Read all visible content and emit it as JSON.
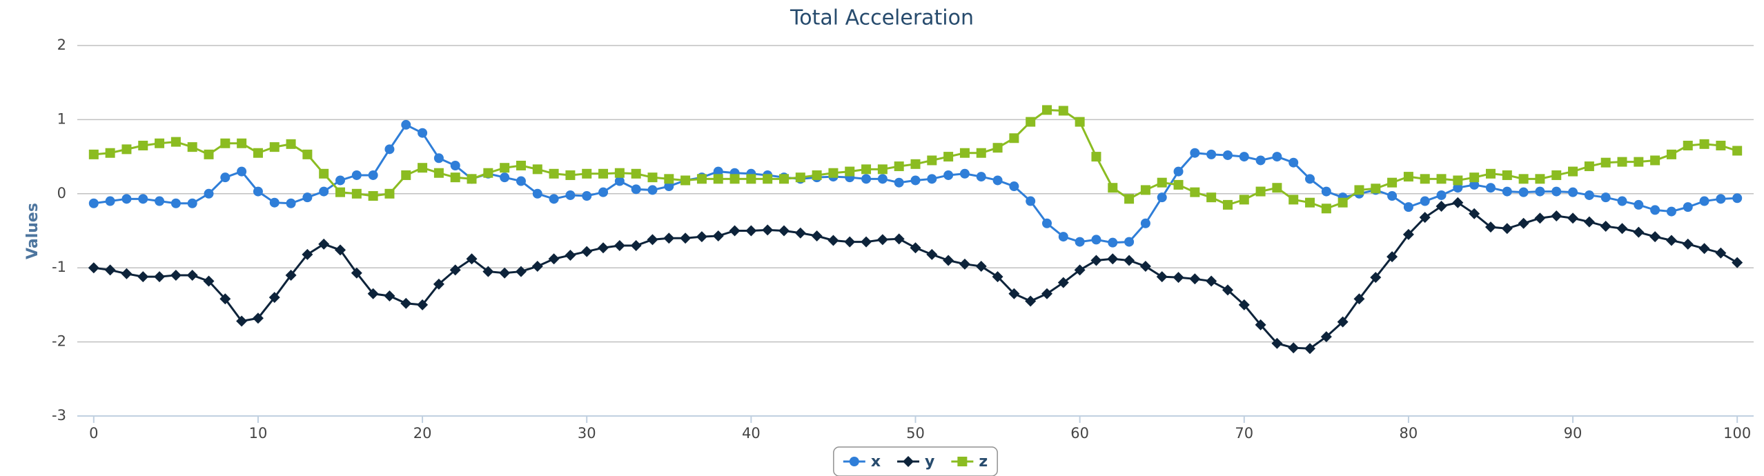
{
  "chart_data": {
    "type": "line",
    "title": "Total Acceleration",
    "y_label": "Values",
    "x": [
      0,
      1,
      2,
      3,
      4,
      5,
      6,
      7,
      8,
      9,
      10,
      11,
      12,
      13,
      14,
      15,
      16,
      17,
      18,
      19,
      20,
      21,
      22,
      23,
      24,
      25,
      26,
      27,
      28,
      29,
      30,
      31,
      32,
      33,
      34,
      35,
      36,
      37,
      38,
      39,
      40,
      41,
      42,
      43,
      44,
      45,
      46,
      47,
      48,
      49,
      50,
      51,
      52,
      53,
      54,
      55,
      56,
      57,
      58,
      59,
      60,
      61,
      62,
      63,
      64,
      65,
      66,
      67,
      68,
      69,
      70,
      71,
      72,
      73,
      74,
      75,
      76,
      77,
      78,
      79,
      80,
      81,
      82,
      83,
      84,
      85,
      86,
      87,
      88,
      89,
      90,
      91,
      92,
      93,
      94,
      95,
      96,
      97,
      98,
      99,
      100
    ],
    "series": [
      {
        "name": "x",
        "color": "#2f7ed8",
        "marker": "circle",
        "values": [
          -0.13,
          -0.1,
          -0.07,
          -0.07,
          -0.1,
          -0.13,
          -0.13,
          0,
          0.22,
          0.3,
          0.03,
          -0.12,
          -0.13,
          -0.05,
          0.03,
          0.18,
          0.25,
          0.25,
          0.6,
          0.93,
          0.82,
          0.48,
          0.38,
          0.2,
          0.27,
          0.22,
          0.17,
          0,
          -0.07,
          -0.02,
          -0.03,
          0.02,
          0.17,
          0.06,
          0.05,
          0.1,
          0.18,
          0.22,
          0.3,
          0.28,
          0.27,
          0.25,
          0.22,
          0.2,
          0.22,
          0.23,
          0.22,
          0.2,
          0.2,
          0.15,
          0.18,
          0.2,
          0.25,
          0.27,
          0.23,
          0.18,
          0.1,
          -0.1,
          -0.4,
          -0.58,
          -0.65,
          -0.62,
          -0.66,
          -0.65,
          -0.4,
          -0.05,
          0.3,
          0.55,
          0.53,
          0.52,
          0.5,
          0.45,
          0.5,
          0.42,
          0.2,
          0.03,
          -0.05,
          0,
          0.05,
          -0.03,
          -0.18,
          -0.1,
          -0.02,
          0.08,
          0.12,
          0.08,
          0.03,
          0.02,
          0.03,
          0.03,
          0.02,
          -0.02,
          -0.05,
          -0.1,
          -0.15,
          -0.22,
          -0.24,
          -0.18,
          -0.1,
          -0.07,
          -0.06
        ]
      },
      {
        "name": "y",
        "color": "#0d233a",
        "marker": "diamond",
        "values": [
          -1.0,
          -1.03,
          -1.08,
          -1.12,
          -1.12,
          -1.1,
          -1.1,
          -1.18,
          -1.42,
          -1.72,
          -1.68,
          -1.4,
          -1.1,
          -0.82,
          -0.68,
          -0.76,
          -1.07,
          -1.35,
          -1.38,
          -1.48,
          -1.5,
          -1.22,
          -1.03,
          -0.88,
          -1.05,
          -1.07,
          -1.05,
          -0.98,
          -0.88,
          -0.83,
          -0.78,
          -0.73,
          -0.7,
          -0.7,
          -0.62,
          -0.6,
          -0.6,
          -0.58,
          -0.57,
          -0.5,
          -0.5,
          -0.49,
          -0.5,
          -0.53,
          -0.57,
          -0.63,
          -0.65,
          -0.65,
          -0.62,
          -0.61,
          -0.73,
          -0.82,
          -0.9,
          -0.95,
          -0.98,
          -1.12,
          -1.35,
          -1.45,
          -1.35,
          -1.2,
          -1.03,
          -0.9,
          -0.88,
          -0.9,
          -0.98,
          -1.12,
          -1.13,
          -1.15,
          -1.18,
          -1.3,
          -1.5,
          -1.77,
          -2.02,
          -2.08,
          -2.09,
          -1.93,
          -1.73,
          -1.42,
          -1.13,
          -0.85,
          -0.55,
          -0.32,
          -0.17,
          -0.12,
          -0.27,
          -0.45,
          -0.47,
          -0.4,
          -0.33,
          -0.3,
          -0.33,
          -0.38,
          -0.44,
          -0.47,
          -0.52,
          -0.58,
          -0.63,
          -0.68,
          -0.74,
          -0.8,
          -0.93
        ]
      },
      {
        "name": "z",
        "color": "#8bbc21",
        "marker": "square",
        "values": [
          0.53,
          0.55,
          0.6,
          0.65,
          0.68,
          0.7,
          0.63,
          0.53,
          0.68,
          0.68,
          0.55,
          0.63,
          0.67,
          0.53,
          0.27,
          0.02,
          0,
          -0.03,
          0,
          0.25,
          0.35,
          0.28,
          0.22,
          0.2,
          0.28,
          0.35,
          0.38,
          0.33,
          0.27,
          0.25,
          0.27,
          0.27,
          0.28,
          0.27,
          0.22,
          0.2,
          0.18,
          0.2,
          0.2,
          0.2,
          0.2,
          0.2,
          0.2,
          0.22,
          0.25,
          0.28,
          0.3,
          0.33,
          0.33,
          0.37,
          0.4,
          0.45,
          0.5,
          0.55,
          0.55,
          0.62,
          0.75,
          0.97,
          1.13,
          1.12,
          0.97,
          0.5,
          0.08,
          -0.07,
          0.05,
          0.15,
          0.12,
          0.02,
          -0.05,
          -0.15,
          -0.08,
          0.03,
          0.08,
          -0.08,
          -0.12,
          -0.2,
          -0.12,
          0.05,
          0.07,
          0.15,
          0.23,
          0.2,
          0.2,
          0.18,
          0.22,
          0.27,
          0.25,
          0.2,
          0.2,
          0.25,
          0.3,
          0.37,
          0.42,
          0.43,
          0.43,
          0.45,
          0.53,
          0.65,
          0.67,
          0.65,
          0.58
        ]
      }
    ],
    "xlim": [
      -1,
      101
    ],
    "xticks": [
      0,
      10,
      20,
      30,
      40,
      50,
      60,
      70,
      80,
      90,
      100
    ],
    "ylim": [
      -3,
      2
    ],
    "yticks": [
      -3,
      -2,
      -1,
      0,
      1,
      2
    ],
    "grid": true,
    "legend": "bottom"
  }
}
